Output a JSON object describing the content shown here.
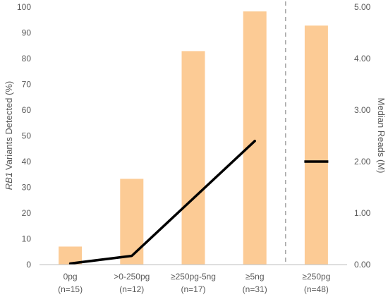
{
  "colors": {
    "bar": "#FCCB95",
    "line": "#000000",
    "axis": "#BFBFBF",
    "divider": "#A6A6A6",
    "text": "#595959"
  },
  "chart_data": {
    "type": "bar",
    "title": "",
    "categories": [
      {
        "label": "0pg",
        "n": "(n=15)"
      },
      {
        "label": ">0-250pg",
        "n": "(n=12)"
      },
      {
        "label": "≥250pg-5ng",
        "n": "(n=17)"
      },
      {
        "label": "≥5ng",
        "n": "(n=31)"
      },
      {
        "label": "≥250pg",
        "n": "(n=48)"
      }
    ],
    "series": [
      {
        "kind": "bar",
        "axis": "left",
        "values": [
          7,
          33.3,
          82.9,
          98.3,
          92.8
        ]
      },
      {
        "kind": "line",
        "axis": "right",
        "values": [
          0.02,
          0.17,
          null,
          2.4,
          null
        ],
        "segments": [
          [
            0,
            3
          ]
        ],
        "single_marks": [
          {
            "category": 4,
            "value": 2.0
          }
        ]
      }
    ],
    "ylabel": "Variants Detected (%)",
    "ylabel_italic_prefix": "RB1",
    "y2label": "Median Reads (M)",
    "ylim": [
      0,
      100
    ],
    "y2lim": [
      0,
      5
    ],
    "yticks": [
      "0",
      "10",
      "20",
      "30",
      "40",
      "50",
      "60",
      "70",
      "80",
      "90",
      "100"
    ],
    "y2ticks": [
      "0.00",
      "1.00",
      "2.00",
      "3.00",
      "4.00",
      "5.00"
    ],
    "divider_after_category": 3,
    "divider_style": "dashed",
    "grid": false,
    "legend": "none"
  }
}
